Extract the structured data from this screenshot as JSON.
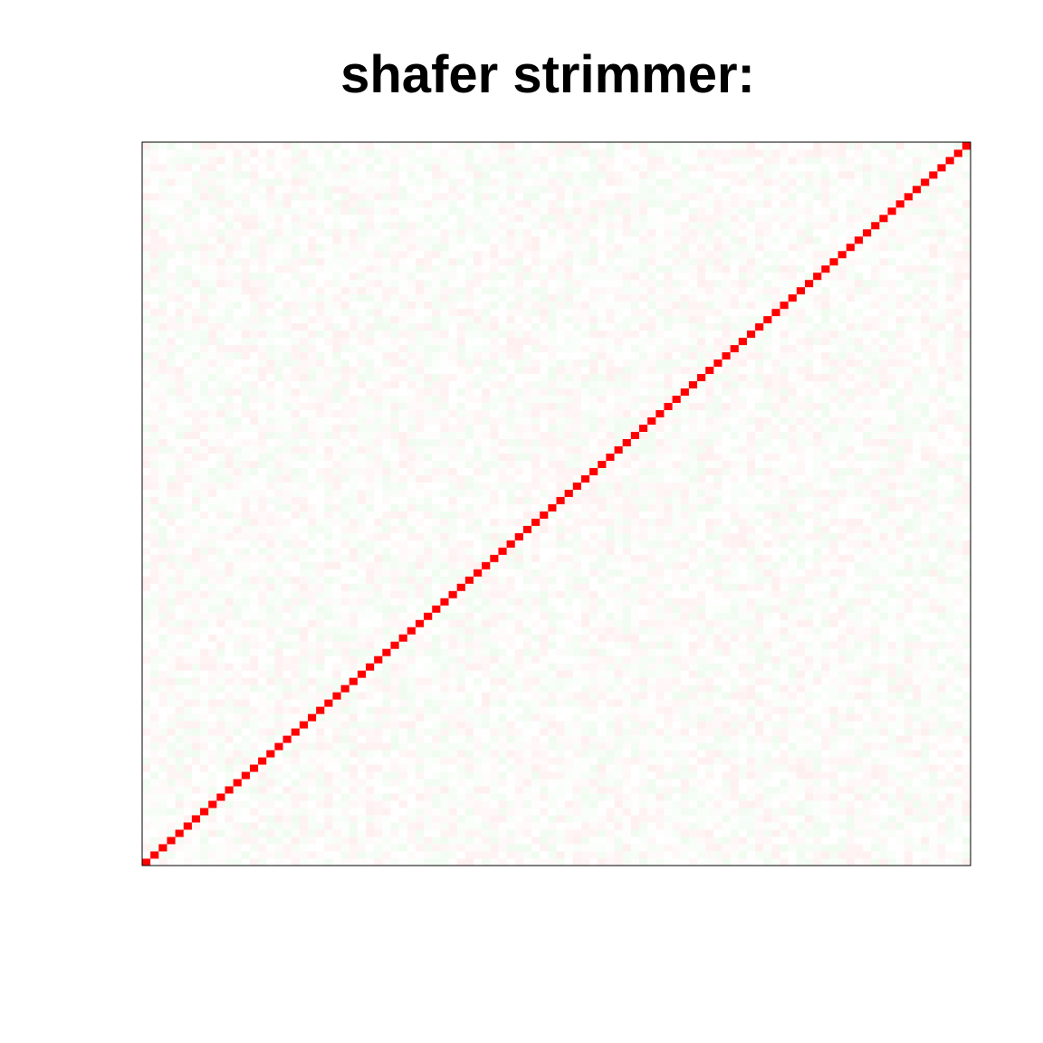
{
  "chart_data": {
    "type": "heatmap",
    "title": "shafer strimmer:",
    "xlabel": "",
    "ylabel": "",
    "rows": 100,
    "cols": 100,
    "diagonal_value": 1,
    "off_diagonal_range": [
      -0.06,
      0.06
    ],
    "color_scale": {
      "negative": "#00c800",
      "zero": "#ffffff",
      "positive": "#ff0000"
    },
    "value_range": [
      -1,
      1
    ],
    "axes_shown": false,
    "grid": false,
    "legend": "none"
  }
}
